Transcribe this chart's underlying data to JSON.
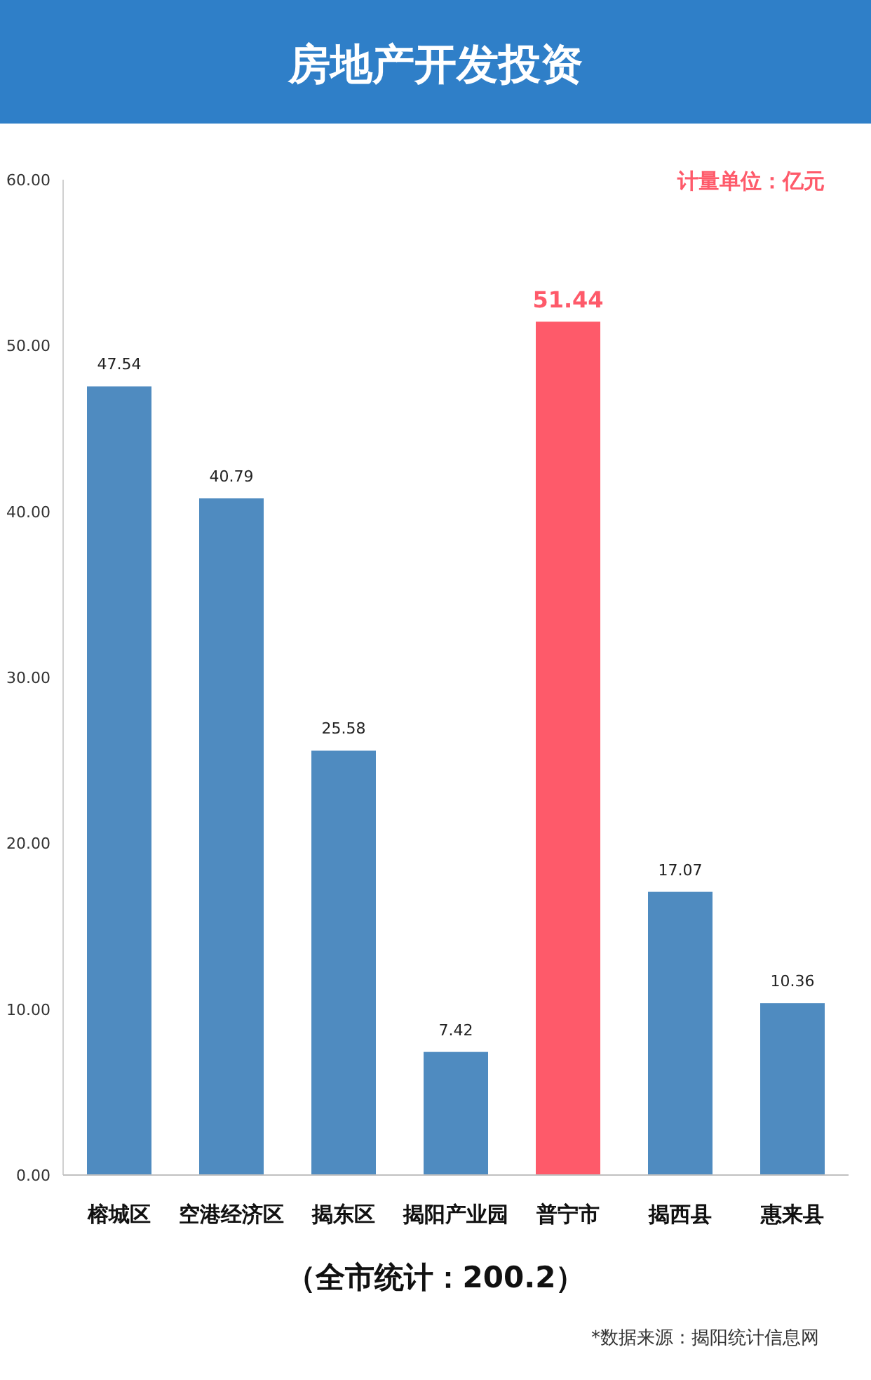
{
  "chart_data": {
    "type": "bar",
    "title": "房地产开发投资",
    "categories": [
      "榕城区",
      "空港经济区",
      "揭东区",
      "揭阳产业园",
      "普宁市",
      "揭西县",
      "惠来县"
    ],
    "values": [
      47.54,
      40.79,
      25.58,
      7.42,
      51.44,
      17.07,
      10.36
    ],
    "colors": [
      "#4f8bc0",
      "#4f8bc0",
      "#4f8bc0",
      "#4f8bc0",
      "#fe5a6a",
      "#4f8bc0",
      "#4f8bc0"
    ],
    "ylim": [
      0,
      60
    ],
    "yticks": [
      {
        "value": 0,
        "label": "0.00"
      },
      {
        "value": 10,
        "label": "10.00"
      },
      {
        "value": 20,
        "label": "20.00"
      },
      {
        "value": 30,
        "label": "30.00"
      },
      {
        "value": 40,
        "label": "40.00"
      },
      {
        "value": 50,
        "label": "50.00"
      },
      {
        "value": 60,
        "label": "60.00"
      }
    ],
    "data_labels": true,
    "annotations": [
      "计量单位：亿元",
      "（全市统计：200.2）",
      "*数据来源：揭阳统计信息网"
    ]
  }
}
